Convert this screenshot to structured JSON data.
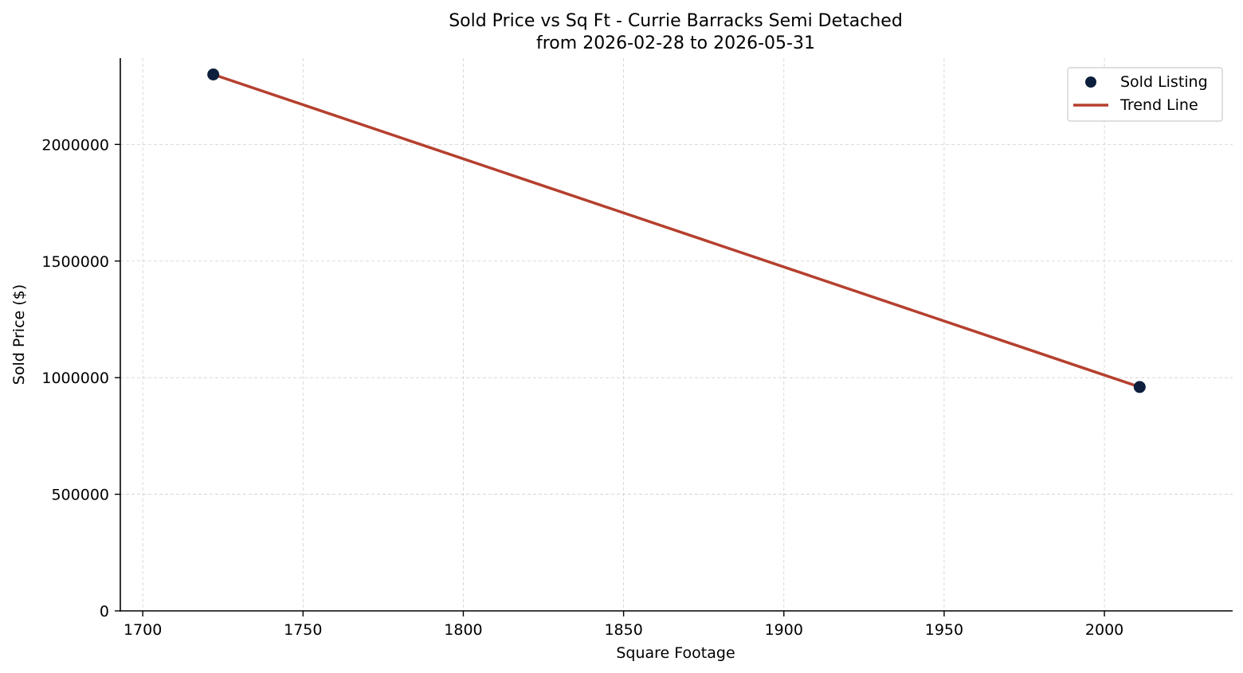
{
  "chart_data": {
    "type": "scatter",
    "title": "Sold Price vs Sq Ft - Currie Barracks Semi Detached",
    "subtitle": "from 2026-02-28 to 2026-05-31",
    "xlabel": "Square Footage",
    "ylabel": "Sold Price ($)",
    "xlim": [
      1693,
      2040
    ],
    "ylim": [
      0,
      2370000
    ],
    "x_ticks": [
      1700,
      1750,
      1800,
      1850,
      1900,
      1950,
      2000
    ],
    "y_ticks": [
      0,
      500000,
      1000000,
      1500000,
      2000000
    ],
    "x_tick_labels": [
      "1700",
      "1750",
      "1800",
      "1850",
      "1900",
      "1950",
      "2000"
    ],
    "y_tick_labels": [
      "0",
      "500000",
      "1000000",
      "1500000",
      "2000000"
    ],
    "grid": true,
    "legend_position": "top-right",
    "series": [
      {
        "name": "Sold Listing",
        "kind": "scatter",
        "color": "#0d1f3c",
        "points": [
          {
            "x": 1722,
            "y": 2300000
          },
          {
            "x": 2011,
            "y": 960000
          }
        ]
      },
      {
        "name": "Trend Line",
        "kind": "line",
        "color": "#b5402e",
        "points": [
          {
            "x": 1722,
            "y": 2300000
          },
          {
            "x": 2011,
            "y": 960000
          }
        ]
      }
    ]
  }
}
